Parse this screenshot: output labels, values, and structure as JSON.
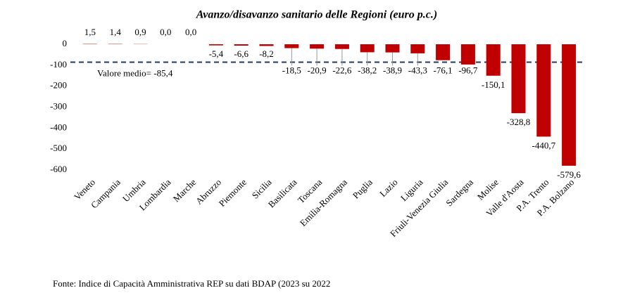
{
  "chart_data": {
    "type": "bar",
    "title": "Avanzo/disavanzo sanitario delle Regioni (euro p.c.)",
    "categories": [
      "Veneto",
      "Campania",
      "Umbria",
      "Lombardia",
      "Marche",
      "Abruzzo",
      "Piemonte",
      "Sicilia",
      "Basilicata",
      "Toscana",
      "Emilia-Romagna",
      "Puglia",
      "Lazio",
      "Liguria",
      "Friuli-Venezia Giulia",
      "Sardegna",
      "Molise",
      "Valle d'Aosta",
      "P.A. Trento",
      "P.A. Bolzano"
    ],
    "values": [
      1.5,
      1.4,
      0.9,
      0.0,
      0.0,
      -5.4,
      -6.6,
      -8.2,
      -18.5,
      -20.9,
      -22.6,
      -38.2,
      -38.9,
      -43.3,
      -76.1,
      -96.7,
      -150.1,
      -328.8,
      -440.7,
      -579.6
    ],
    "value_labels": [
      "1,5",
      "1,4",
      "0,9",
      "0,0",
      "0,0",
      "-5,4",
      "-6,6",
      "-8,2",
      "-18,5",
      "-20,9",
      "-22,6",
      "-38,2",
      "-38,9",
      "-43,3",
      "-76,1",
      "-96,7",
      "-150,1",
      "-328,8",
      "-440,7",
      "-579,6"
    ],
    "color": "#c00000",
    "ylim": [
      -600,
      0
    ],
    "yticks": [
      0,
      -100,
      -200,
      -300,
      -400,
      -500,
      -600
    ],
    "mean": -85.4,
    "mean_label": "Valore medio= -85,4",
    "mean_color": "#1f3864",
    "source": "Fonte: Indice di Capacità Amministrativa REP su dati BDAP (2023 su 2022"
  }
}
